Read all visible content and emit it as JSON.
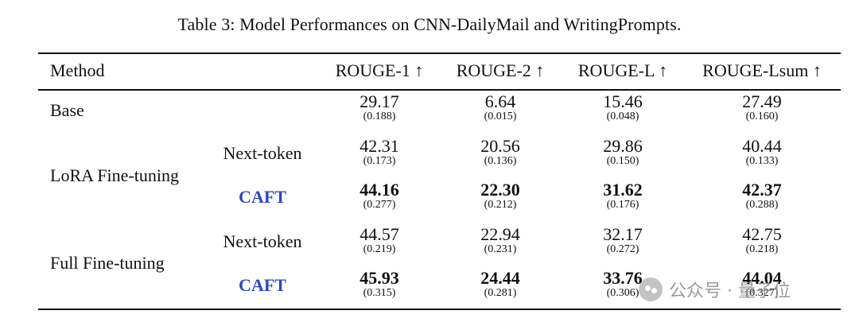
{
  "caption": "Table 3: Model Performances on CNN-DailyMail and WritingPrompts.",
  "columns": [
    "Method",
    "ROUGE-1 ↑",
    "ROUGE-2 ↑",
    "ROUGE-L ↑",
    "ROUGE-Lsum ↑"
  ],
  "groups": [
    "Base",
    "LoRA Fine-tuning",
    "Full Fine-tuning"
  ],
  "rows": [
    {
      "group": "Base",
      "sub": "",
      "bold": false,
      "cells": [
        {
          "v": "29.17",
          "sd": "(0.188)"
        },
        {
          "v": "6.64",
          "sd": "(0.015)"
        },
        {
          "v": "15.46",
          "sd": "(0.048)"
        },
        {
          "v": "27.49",
          "sd": "(0.160)"
        }
      ]
    },
    {
      "group": "LoRA Fine-tuning",
      "sub": "Next-token",
      "bold": false,
      "cells": [
        {
          "v": "42.31",
          "sd": "(0.173)"
        },
        {
          "v": "20.56",
          "sd": "(0.136)"
        },
        {
          "v": "29.86",
          "sd": "(0.150)"
        },
        {
          "v": "40.44",
          "sd": "(0.133)"
        }
      ]
    },
    {
      "group": "LoRA Fine-tuning",
      "sub": "CAFT",
      "bold": true,
      "cells": [
        {
          "v": "44.16",
          "sd": "(0.277)"
        },
        {
          "v": "22.30",
          "sd": "(0.212)"
        },
        {
          "v": "31.62",
          "sd": "(0.176)"
        },
        {
          "v": "42.37",
          "sd": "(0.288)"
        }
      ]
    },
    {
      "group": "Full Fine-tuning",
      "sub": "Next-token",
      "bold": false,
      "cells": [
        {
          "v": "44.57",
          "sd": "(0.219)"
        },
        {
          "v": "22.94",
          "sd": "(0.231)"
        },
        {
          "v": "32.17",
          "sd": "(0.272)"
        },
        {
          "v": "42.75",
          "sd": "(0.218)"
        }
      ]
    },
    {
      "group": "Full Fine-tuning",
      "sub": "CAFT",
      "bold": true,
      "cells": [
        {
          "v": "45.93",
          "sd": "(0.315)"
        },
        {
          "v": "24.44",
          "sd": "(0.281)"
        },
        {
          "v": "33.76",
          "sd": "(0.306)"
        },
        {
          "v": "44.04",
          "sd": "(0.327)"
        }
      ]
    }
  ],
  "watermark": {
    "text": "公众号 · 量子位",
    "icon": "wechat-icon"
  },
  "colors": {
    "caft": "#2b49c2",
    "text": "#111111"
  }
}
